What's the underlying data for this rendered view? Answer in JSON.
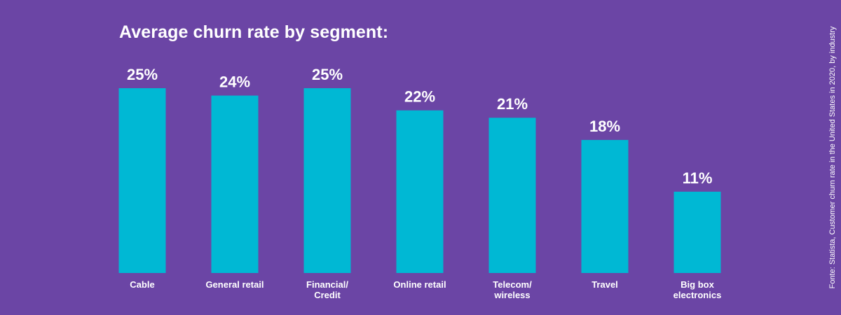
{
  "chart_data": {
    "type": "bar",
    "title": "Average churn rate by segment:",
    "categories": [
      [
        "Cable"
      ],
      [
        "General retail"
      ],
      [
        "Financial/",
        "Credit"
      ],
      [
        "Online retail"
      ],
      [
        "Telecom/",
        "wireless"
      ],
      [
        "Travel"
      ],
      [
        "Big box",
        "electronics"
      ]
    ],
    "values": [
      25,
      24,
      25,
      22,
      21,
      18,
      11
    ],
    "data_labels": [
      "25%",
      "24%",
      "25%",
      "22%",
      "21%",
      "18%",
      "11%"
    ],
    "ylim": [
      0,
      25
    ],
    "grid": false,
    "legend": "none",
    "bar_color": "#00b8d4",
    "background_color": "#6b45a5",
    "text_color": "#ffffff"
  },
  "source_note": "Fonte: Statista, Customer churn rate in the United States in 2020, by industry"
}
